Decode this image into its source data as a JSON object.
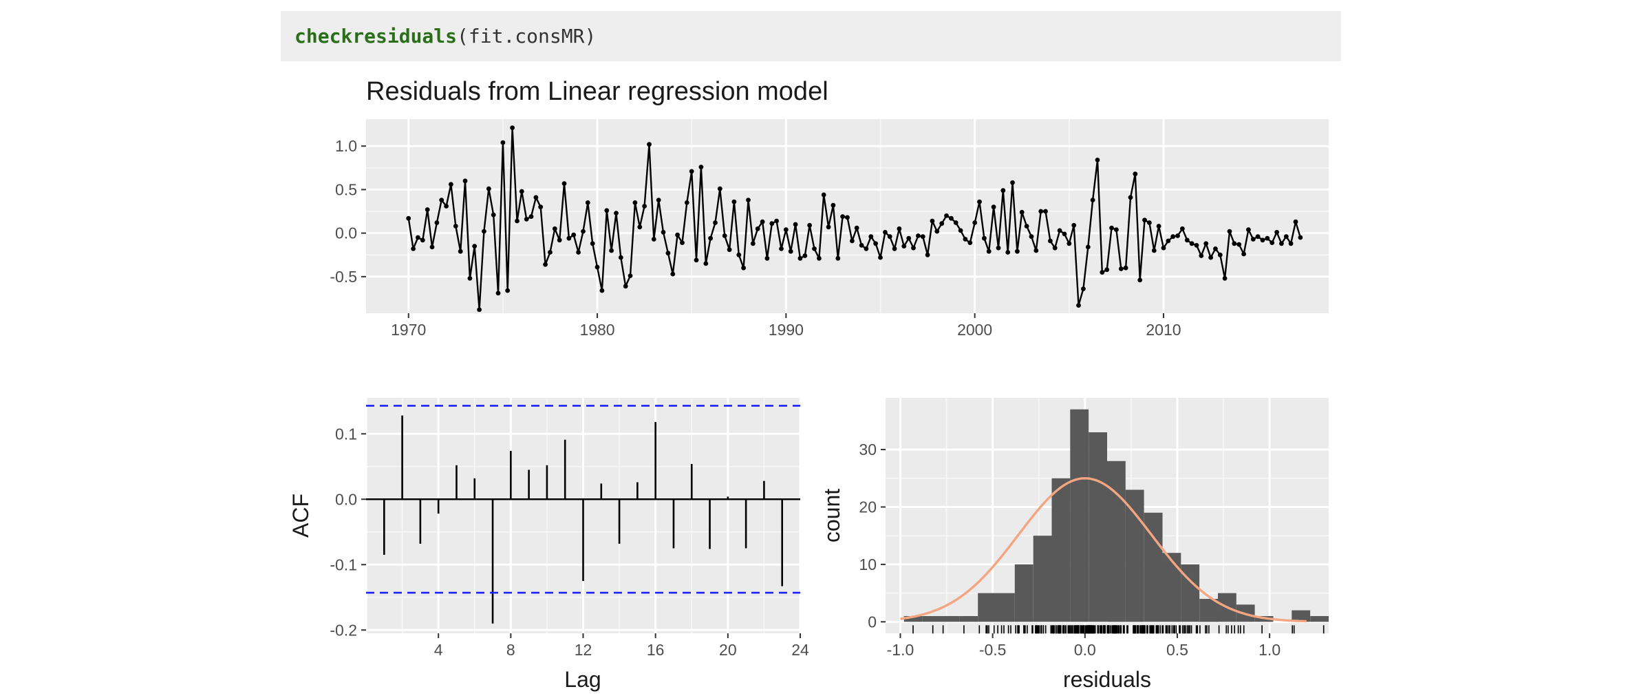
{
  "code": {
    "function": "checkresiduals",
    "args": "(fit.consMR)"
  },
  "chart_data": [
    {
      "type": "line",
      "title": "Residuals from Linear regression model",
      "xlabel": "",
      "ylabel": "",
      "x_start": 1970.0,
      "x_step": 0.25,
      "xlim": [
        1967.75,
        2018.75
      ],
      "ylim": [
        -0.92,
        1.31
      ],
      "xticks": [
        1970,
        1980,
        1990,
        2000,
        2010
      ],
      "xtick_labels": [
        "1970",
        "1980",
        "1990",
        "2000",
        "2010"
      ],
      "yticks": [
        -0.5,
        0.0,
        0.5,
        1.0
      ],
      "ytick_labels": [
        "-0.5",
        "0.0",
        "0.5",
        "1.0"
      ],
      "grid": true,
      "values": [
        0.17,
        -0.18,
        -0.05,
        -0.08,
        0.27,
        -0.16,
        0.12,
        0.38,
        0.31,
        0.56,
        0.08,
        -0.21,
        0.6,
        -0.52,
        -0.15,
        -0.88,
        0.02,
        0.51,
        0.21,
        -0.69,
        1.04,
        -0.66,
        1.21,
        0.14,
        0.48,
        0.16,
        0.19,
        0.41,
        0.3,
        -0.36,
        -0.22,
        0.05,
        -0.08,
        0.57,
        -0.06,
        -0.02,
        -0.22,
        0.02,
        0.35,
        -0.12,
        -0.39,
        -0.66,
        0.26,
        -0.2,
        0.23,
        -0.28,
        -0.61,
        -0.49,
        0.35,
        0.07,
        0.31,
        1.02,
        -0.07,
        0.38,
        0.01,
        -0.23,
        -0.47,
        -0.02,
        -0.11,
        0.35,
        0.71,
        -0.31,
        0.76,
        -0.35,
        -0.06,
        0.12,
        0.51,
        -0.03,
        -0.19,
        0.36,
        -0.25,
        -0.4,
        0.38,
        -0.12,
        0.05,
        0.13,
        -0.29,
        0.11,
        0.14,
        -0.18,
        0.04,
        -0.21,
        0.1,
        -0.29,
        -0.26,
        0.09,
        -0.18,
        -0.29,
        0.44,
        0.07,
        0.32,
        -0.29,
        0.19,
        0.18,
        -0.09,
        0.06,
        -0.14,
        -0.18,
        -0.04,
        -0.12,
        -0.28,
        0.01,
        -0.04,
        -0.18,
        0.05,
        -0.15,
        -0.06,
        -0.17,
        -0.03,
        -0.04,
        -0.25,
        0.14,
        0.02,
        0.11,
        0.2,
        0.17,
        0.12,
        0.03,
        -0.07,
        -0.11,
        0.12,
        0.36,
        -0.06,
        -0.21,
        0.3,
        -0.17,
        0.49,
        -0.22,
        0.58,
        -0.21,
        0.24,
        0.08,
        -0.04,
        -0.2,
        0.25,
        0.25,
        -0.09,
        -0.17,
        0.03,
        -0.01,
        -0.12,
        0.09,
        -0.83,
        -0.64,
        -0.16,
        0.38,
        0.84,
        -0.45,
        -0.42,
        0.06,
        0.04,
        -0.41,
        -0.4,
        0.41,
        0.68,
        -0.54,
        0.15,
        0.12,
        -0.2,
        0.08,
        -0.17,
        -0.09,
        -0.04,
        -0.03,
        0.05,
        -0.08,
        -0.12,
        -0.14,
        -0.26,
        -0.12,
        -0.28,
        -0.18,
        -0.25,
        -0.52,
        0.02,
        -0.12,
        -0.13,
        -0.24,
        0.04,
        -0.07,
        -0.04,
        -0.08,
        -0.06,
        -0.11,
        0.01,
        -0.12,
        -0.04,
        -0.12,
        0.13,
        -0.05
      ]
    },
    {
      "type": "bar",
      "title": "",
      "xlabel": "Lag",
      "ylabel": "ACF",
      "categories": [
        1,
        2,
        3,
        4,
        5,
        6,
        7,
        8,
        9,
        10,
        11,
        12,
        13,
        14,
        15,
        16,
        17,
        18,
        19,
        20,
        21,
        22,
        23
      ],
      "values": [
        -0.085,
        0.128,
        -0.068,
        -0.022,
        0.052,
        0.032,
        -0.19,
        0.074,
        0.045,
        0.052,
        0.091,
        -0.125,
        0.024,
        -0.068,
        0.026,
        0.118,
        -0.075,
        0.054,
        -0.076,
        0.004,
        -0.075,
        0.028,
        -0.133
      ],
      "xlim": [
        0,
        24
      ],
      "ylim": [
        -0.205,
        0.155
      ],
      "xticks": [
        4,
        8,
        12,
        16,
        20,
        24
      ],
      "xtick_labels": [
        "4",
        "8",
        "12",
        "16",
        "20",
        "24"
      ],
      "yticks": [
        -0.2,
        -0.1,
        0.0,
        0.1
      ],
      "ytick_labels": [
        "-0.2",
        "-0.1",
        "0.0",
        "0.1"
      ],
      "ci": 0.143,
      "ci_color": "#2020ff",
      "grid": true
    },
    {
      "type": "bar",
      "title": "",
      "xlabel": "residuals",
      "ylabel": "count",
      "bin_width": 0.1,
      "bin_edges_start": -0.98,
      "values": [
        1,
        1,
        1,
        1,
        5,
        5,
        10,
        15,
        25,
        37,
        33,
        28,
        23,
        19,
        12,
        10,
        4,
        5,
        3,
        1,
        0,
        2,
        1
      ],
      "xlim": [
        -1.08,
        1.32
      ],
      "ylim": [
        -2,
        39
      ],
      "xticks": [
        -1.0,
        -0.5,
        0.0,
        0.5,
        1.0
      ],
      "xtick_labels": [
        "-1.0",
        "-0.5",
        "0.0",
        "0.5",
        "1.0"
      ],
      "yticks": [
        0,
        10,
        20,
        30
      ],
      "ytick_labels": [
        "0",
        "10",
        "20",
        "30"
      ],
      "bar_color": "#595959",
      "density_color": "#f4a582",
      "density_peak": 25,
      "density_mean": 0.0,
      "density_sd": 0.36,
      "rug": true,
      "grid": true
    }
  ]
}
